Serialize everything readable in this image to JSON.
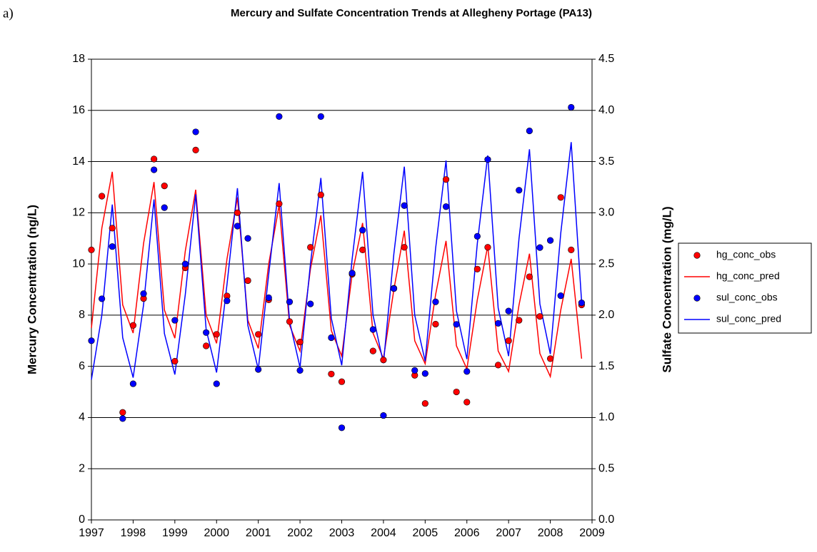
{
  "panel_label": "a)",
  "chart_data": {
    "type": "line",
    "title": "Mercury and Sulfate Concentration Trends at Allegheny Portage (PA13)",
    "y_label": "Mercury Concentration (ng/L)",
    "y2_label": "Sulfate Concentration (mg/L)",
    "x": [
      1997,
      1997.25,
      1997.5,
      1997.75,
      1998,
      1998.25,
      1998.5,
      1998.75,
      1999,
      1999.25,
      1999.5,
      1999.75,
      2000,
      2000.25,
      2000.5,
      2000.75,
      2001,
      2001.25,
      2001.5,
      2001.75,
      2002,
      2002.25,
      2002.5,
      2002.75,
      2003,
      2003.25,
      2003.5,
      2003.75,
      2004,
      2004.25,
      2004.5,
      2004.75,
      2005,
      2005.25,
      2005.5,
      2005.75,
      2006,
      2006.25,
      2006.5,
      2006.75,
      2007,
      2007.25,
      2007.5,
      2007.75,
      2008,
      2008.25,
      2008.5,
      2008.75
    ],
    "series": [
      {
        "name": "hg_conc_obs",
        "color": "#ff0000",
        "style": "markers",
        "axis": "y",
        "values": [
          10.55,
          12.65,
          11.4,
          4.2,
          7.6,
          8.65,
          14.1,
          13.05,
          6.2,
          9.85,
          14.45,
          6.8,
          7.25,
          8.75,
          12.0,
          9.35,
          7.25,
          8.6,
          12.35,
          7.75,
          6.95,
          10.65,
          12.7,
          5.7,
          5.4,
          9.6,
          10.55,
          6.6,
          6.25,
          9.05,
          10.65,
          5.65,
          4.55,
          7.65,
          13.3,
          5.0,
          4.6,
          9.8,
          10.65,
          6.05,
          7.0,
          7.8,
          9.5,
          7.95,
          6.3,
          12.6,
          10.55,
          8.4
        ]
      },
      {
        "name": "hg_conc_pred",
        "color": "#ff0000",
        "style": "line",
        "axis": "y",
        "values": [
          7.5,
          11.4,
          13.6,
          8.4,
          7.3,
          10.8,
          13.2,
          8.2,
          7.1,
          10.5,
          12.9,
          8.0,
          6.9,
          10.2,
          12.6,
          7.8,
          6.7,
          10.0,
          12.3,
          7.6,
          6.6,
          9.8,
          11.9,
          7.4,
          6.4,
          9.6,
          11.6,
          7.3,
          6.3,
          9.0,
          11.3,
          7.0,
          6.1,
          8.8,
          10.9,
          6.8,
          5.9,
          8.6,
          10.7,
          6.6,
          5.8,
          8.4,
          10.4,
          6.5,
          5.6,
          8.2,
          10.2,
          6.3
        ]
      },
      {
        "name": "sul_conc_obs",
        "color": "#0000ff",
        "style": "markers",
        "axis": "y2",
        "values": [
          1.75,
          2.16,
          2.67,
          0.99,
          1.33,
          2.21,
          3.42,
          3.05,
          1.95,
          2.5,
          3.79,
          1.83,
          1.33,
          2.14,
          2.87,
          2.75,
          1.47,
          2.17,
          3.94,
          2.13,
          1.46,
          2.11,
          3.94,
          1.78,
          0.9,
          2.41,
          2.83,
          1.86,
          1.02,
          2.26,
          3.07,
          1.46,
          1.43,
          2.13,
          3.06,
          1.91,
          1.45,
          2.77,
          3.52,
          1.92,
          2.04,
          3.22,
          3.8,
          2.66,
          2.73,
          2.19,
          4.03,
          2.12
        ]
      },
      {
        "name": "sul_conc_pred",
        "color": "#0000ff",
        "style": "line",
        "axis": "y2",
        "values": [
          1.37,
          2.0,
          3.08,
          1.78,
          1.39,
          2.1,
          3.13,
          1.82,
          1.42,
          2.2,
          3.18,
          1.86,
          1.44,
          2.3,
          3.24,
          1.9,
          1.47,
          2.4,
          3.29,
          1.94,
          1.49,
          2.5,
          3.34,
          1.97,
          1.51,
          2.55,
          3.4,
          2.0,
          1.53,
          2.6,
          3.45,
          2.0,
          1.55,
          2.65,
          3.51,
          2.04,
          1.57,
          2.7,
          3.56,
          2.07,
          1.6,
          2.75,
          3.62,
          2.11,
          1.62,
          2.8,
          3.69,
          2.13
        ]
      }
    ],
    "xlim": [
      1997,
      2009
    ],
    "xticks": [
      1997,
      1998,
      1999,
      2000,
      2001,
      2002,
      2003,
      2004,
      2005,
      2006,
      2007,
      2008,
      2009
    ],
    "ylim": [
      0,
      18
    ],
    "yticks": [
      0,
      2,
      4,
      6,
      8,
      10,
      12,
      14,
      16,
      18
    ],
    "y2lim": [
      0,
      4.5
    ],
    "y2ticks": [
      {
        "value": 0,
        "label": "0.0"
      },
      0.5,
      {
        "value": 1,
        "label": "1.0"
      },
      1.5,
      {
        "value": 2,
        "label": "2.0"
      },
      2.5,
      {
        "value": 3,
        "label": "3.0"
      },
      3.5,
      {
        "value": 4,
        "label": "4.0"
      },
      4.5
    ],
    "grid": true,
    "legend": "right"
  }
}
